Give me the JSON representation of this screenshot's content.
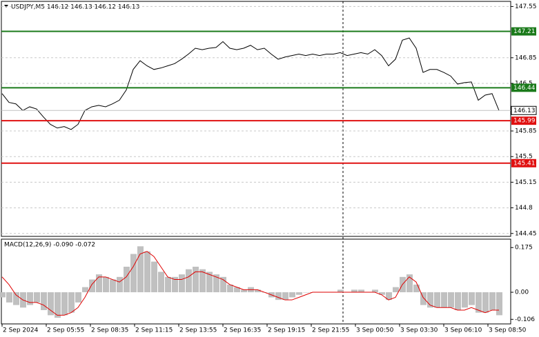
{
  "chart_data": [
    {
      "type": "line",
      "title": "USDJPY,M5  146.12 146.13 146.12 146.13",
      "ylim": [
        144.41,
        147.62
      ],
      "yticks": [
        147.55,
        146.85,
        146.5,
        145.85,
        145.5,
        145.15,
        144.8,
        144.45
      ],
      "grid": true,
      "series": [
        {
          "name": "USDJPY",
          "color": "#000000",
          "values": [
            146.36,
            146.24,
            146.22,
            146.13,
            146.18,
            146.15,
            146.04,
            145.94,
            145.89,
            145.91,
            145.87,
            145.94,
            146.13,
            146.18,
            146.2,
            146.18,
            146.22,
            146.27,
            146.41,
            146.69,
            146.81,
            146.74,
            146.69,
            146.71,
            146.74,
            146.77,
            146.83,
            146.9,
            146.98,
            146.96,
            146.98,
            146.99,
            147.07,
            146.98,
            146.96,
            146.98,
            147.02,
            146.96,
            146.98,
            146.9,
            146.83,
            146.86,
            146.88,
            146.9,
            146.88,
            146.9,
            146.88,
            146.9,
            146.9,
            146.92,
            146.88,
            146.9,
            146.92,
            146.9,
            146.96,
            146.88,
            146.74,
            146.83,
            147.09,
            147.12,
            146.98,
            146.65,
            146.69,
            146.69,
            146.65,
            146.6,
            146.49,
            146.51,
            146.52,
            146.27,
            146.34,
            146.36,
            146.13
          ]
        }
      ],
      "levels": [
        {
          "value": 147.21,
          "color": "#1a7a1a"
        },
        {
          "value": 146.44,
          "color": "#1a7a1a"
        },
        {
          "value": 145.99,
          "color": "#e01010"
        },
        {
          "value": 145.41,
          "color": "#e01010"
        }
      ],
      "current_price": 146.13,
      "time_labels": [
        "2 Sep 2024",
        "2 Sep 05:55",
        "2 Sep 08:35",
        "2 Sep 11:15",
        "2 Sep 13:55",
        "2 Sep 16:35",
        "2 Sep 19:15",
        "2 Sep 21:55",
        "3 Sep 00:50",
        "3 Sep 03:30",
        "3 Sep 06:10",
        "3 Sep 08:50"
      ]
    },
    {
      "type": "macd",
      "title": "MACD(12,26,9) -0.090 -0.072",
      "ylim": [
        -0.124,
        0.208
      ],
      "yticks": [
        0.175,
        {
          "value": 0,
          "label": "0.00"
        },
        -0.106
      ],
      "series": [
        {
          "name": "MACD",
          "color": "#c0c0c0",
          "values": [
            -0.02,
            -0.04,
            -0.05,
            -0.06,
            -0.05,
            -0.04,
            -0.07,
            -0.09,
            -0.1,
            -0.09,
            -0.08,
            -0.04,
            0.02,
            0.05,
            0.07,
            0.06,
            0.05,
            0.06,
            0.1,
            0.15,
            0.18,
            0.16,
            0.12,
            0.08,
            0.06,
            0.06,
            0.07,
            0.09,
            0.1,
            0.09,
            0.08,
            0.07,
            0.06,
            0.03,
            0.02,
            0.01,
            0.02,
            0.01,
            0,
            -0.02,
            -0.03,
            -0.03,
            -0.02,
            -0.01,
            0,
            0,
            0,
            0,
            0,
            0.01,
            0,
            0.01,
            0.01,
            0,
            0.01,
            -0.01,
            -0.03,
            0.02,
            0.06,
            0.07,
            0.03,
            -0.05,
            -0.06,
            -0.06,
            -0.06,
            -0.06,
            -0.07,
            -0.06,
            -0.05,
            -0.08,
            -0.08,
            -0.07,
            -0.09
          ]
        },
        {
          "name": "Signal",
          "color": "#e00000",
          "values": [
            0.06,
            0.03,
            -0.01,
            -0.03,
            -0.04,
            -0.04,
            -0.05,
            -0.07,
            -0.09,
            -0.09,
            -0.08,
            -0.06,
            -0.02,
            0.03,
            0.06,
            0.06,
            0.05,
            0.04,
            0.06,
            0.1,
            0.15,
            0.16,
            0.14,
            0.1,
            0.06,
            0.05,
            0.05,
            0.06,
            0.08,
            0.08,
            0.07,
            0.06,
            0.05,
            0.03,
            0.02,
            0.01,
            0.01,
            0.01,
            0,
            -0.01,
            -0.02,
            -0.03,
            -0.03,
            -0.02,
            -0.01,
            0,
            0,
            0,
            0,
            0,
            0,
            0,
            0,
            0,
            0,
            -0.01,
            -0.03,
            -0.02,
            0.03,
            0.06,
            0.04,
            -0.02,
            -0.05,
            -0.06,
            -0.06,
            -0.06,
            -0.07,
            -0.07,
            -0.06,
            -0.07,
            -0.08,
            -0.07,
            -0.07
          ]
        }
      ]
    }
  ]
}
